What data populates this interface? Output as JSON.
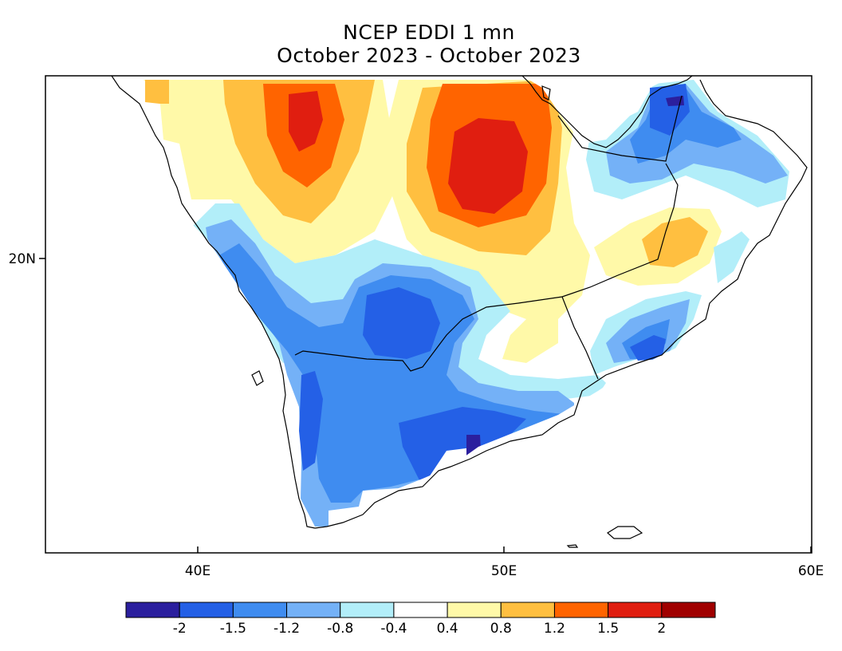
{
  "title": "NCEP EDDI 1 mn",
  "subtitle": "October 2023 - October 2023",
  "map": {
    "region": "Arabian Peninsula",
    "lon_ticks": [
      "40E",
      "50E",
      "60E"
    ],
    "lat_ticks": [
      "20N"
    ],
    "lon_range": [
      35,
      60
    ],
    "lat_range": [
      12,
      30
    ]
  },
  "colorbar": {
    "colors": [
      "#2b1f9e",
      "#2460e6",
      "#3f8cf0",
      "#74b1f7",
      "#b2eef9",
      "#ffffff",
      "#fff9a8",
      "#ffbf40",
      "#ff6400",
      "#e01e10",
      "#a00000"
    ],
    "labels": [
      "-2",
      "-1.5",
      "-1.2",
      "-0.8",
      "-0.4",
      "0.4",
      "0.8",
      "1.2",
      "1.5",
      "2"
    ]
  }
}
